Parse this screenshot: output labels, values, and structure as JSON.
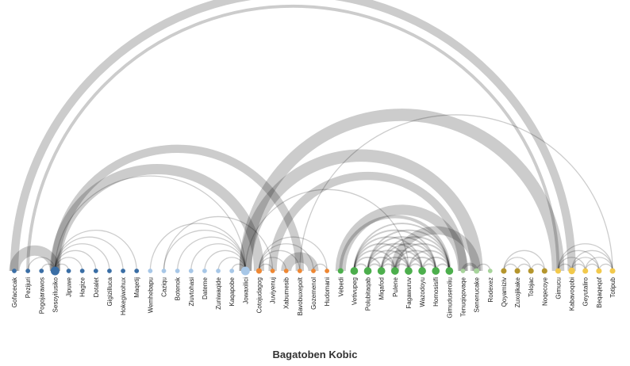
{
  "title": "Bagatoben Kobic",
  "groups": [
    {
      "id": 0,
      "color": "#3a6ea5"
    },
    {
      "id": 1,
      "color": "#a7c7e7"
    },
    {
      "id": 2,
      "color": "#ee8733"
    },
    {
      "id": 3,
      "color": "#4cae4c"
    },
    {
      "id": 4,
      "color": "#a7d49b"
    },
    {
      "id": 5,
      "color": "#b5962d"
    },
    {
      "id": 6,
      "color": "#f2c94c"
    }
  ],
  "nodes": [
    {
      "name": "Gofacecak",
      "group": 0,
      "weight": 1
    },
    {
      "name": "Pezijuri",
      "group": 0,
      "weight": 1
    },
    {
      "name": "Pogojarawos",
      "group": 0,
      "weight": 1
    },
    {
      "name": "Sesoyilusiko",
      "group": 0,
      "weight": 3
    },
    {
      "name": "Jipuwe",
      "group": 0,
      "weight": 1
    },
    {
      "name": "Hagize",
      "group": 0,
      "weight": 1
    },
    {
      "name": "Dotalet",
      "group": 0,
      "weight": 1
    },
    {
      "name": "Gigizilluca",
      "group": 0,
      "weight": 1
    },
    {
      "name": "Hokegiwohux",
      "group": 0,
      "weight": 1
    },
    {
      "name": "Maqetij",
      "group": 0,
      "weight": 1
    },
    {
      "name": "Wemhebapu",
      "group": 1,
      "weight": 1
    },
    {
      "name": "Caziqu",
      "group": 1,
      "weight": 1
    },
    {
      "name": "Botenok",
      "group": 1,
      "weight": 1
    },
    {
      "name": "Ziuvtohasi",
      "group": 1,
      "weight": 1
    },
    {
      "name": "Dateme",
      "group": 1,
      "weight": 1
    },
    {
      "name": "Zuniwaqide",
      "group": 1,
      "weight": 1
    },
    {
      "name": "Kaqapobe",
      "group": 1,
      "weight": 1
    },
    {
      "name": "Jowaxilici",
      "group": 1,
      "weight": 3
    },
    {
      "name": "Cotojudagog",
      "group": 2,
      "weight": 1.5
    },
    {
      "name": "Juviyenuj",
      "group": 2,
      "weight": 1
    },
    {
      "name": "Xabumesib",
      "group": 2,
      "weight": 1
    },
    {
      "name": "Bavobuxepolt",
      "group": 2,
      "weight": 1
    },
    {
      "name": "Gozemenol",
      "group": 2,
      "weight": 1
    },
    {
      "name": "Hudomani",
      "group": 2,
      "weight": 1
    },
    {
      "name": "Vebedi",
      "group": 3,
      "weight": 1.5
    },
    {
      "name": "Vetivupeg",
      "group": 3,
      "weight": 2.5
    },
    {
      "name": "Polubitaqab",
      "group": 3,
      "weight": 2.5
    },
    {
      "name": "Miqafod",
      "group": 3,
      "weight": 2.5
    },
    {
      "name": "Pulene",
      "group": 3,
      "weight": 2.5
    },
    {
      "name": "Fagawuruv",
      "group": 3,
      "weight": 2.5
    },
    {
      "name": "Wazodoyu",
      "group": 3,
      "weight": 2.5
    },
    {
      "name": "Homosisifi",
      "group": 3,
      "weight": 2.5
    },
    {
      "name": "Gimuduseroliu",
      "group": 3,
      "weight": 2.5
    },
    {
      "name": "Tenuqiqovaqe",
      "group": 4,
      "weight": 1
    },
    {
      "name": "Senenucake",
      "group": 4,
      "weight": 1.5
    },
    {
      "name": "Rodexez",
      "group": 4,
      "weight": 1
    },
    {
      "name": "Qoyamiziv",
      "group": 5,
      "weight": 1.5
    },
    {
      "name": "Zuxojikake",
      "group": 5,
      "weight": 1.5
    },
    {
      "name": "Tolojac",
      "group": 5,
      "weight": 1.5
    },
    {
      "name": "Noqecoye",
      "group": 5,
      "weight": 1.5
    },
    {
      "name": "Gimucu",
      "group": 6,
      "weight": 1.5
    },
    {
      "name": "Kabavoqobi",
      "group": 6,
      "weight": 2
    },
    {
      "name": "Geyutaliro",
      "group": 6,
      "weight": 1.5
    },
    {
      "name": "Beqaqeqof",
      "group": 6,
      "weight": 1.5
    },
    {
      "name": "Totipub",
      "group": 6,
      "weight": 1.5
    }
  ],
  "links": [
    [
      0,
      3,
      10
    ],
    [
      0,
      41,
      8
    ],
    [
      1,
      3,
      1
    ],
    [
      1,
      40,
      3
    ],
    [
      2,
      3,
      1
    ],
    [
      3,
      4,
      1
    ],
    [
      3,
      5,
      1
    ],
    [
      3,
      6,
      1
    ],
    [
      3,
      7,
      1
    ],
    [
      3,
      8,
      1
    ],
    [
      3,
      9,
      1
    ],
    [
      3,
      17,
      1
    ],
    [
      3,
      18,
      10
    ],
    [
      3,
      21,
      8
    ],
    [
      10,
      17,
      1
    ],
    [
      11,
      17,
      1
    ],
    [
      11,
      19,
      1
    ],
    [
      12,
      17,
      1
    ],
    [
      13,
      17,
      1
    ],
    [
      14,
      17,
      1
    ],
    [
      15,
      17,
      1
    ],
    [
      16,
      17,
      1
    ],
    [
      17,
      29,
      1
    ],
    [
      17,
      34,
      12
    ],
    [
      17,
      40,
      12
    ],
    [
      18,
      19,
      1
    ],
    [
      18,
      20,
      1
    ],
    [
      18,
      21,
      1
    ],
    [
      18,
      22,
      1
    ],
    [
      18,
      23,
      1
    ],
    [
      19,
      33,
      8
    ],
    [
      20,
      22,
      10
    ],
    [
      21,
      44,
      1
    ],
    [
      22,
      23,
      1
    ],
    [
      24,
      32,
      3
    ],
    [
      24,
      33,
      10
    ],
    [
      25,
      26,
      1.5
    ],
    [
      25,
      27,
      1.5
    ],
    [
      25,
      28,
      1.5
    ],
    [
      25,
      29,
      1.5
    ],
    [
      25,
      30,
      1.5
    ],
    [
      25,
      31,
      1.5
    ],
    [
      25,
      32,
      1.5
    ],
    [
      26,
      27,
      1.5
    ],
    [
      26,
      28,
      1.5
    ],
    [
      26,
      29,
      1.5
    ],
    [
      26,
      30,
      1.5
    ],
    [
      26,
      31,
      1.5
    ],
    [
      26,
      32,
      1.5
    ],
    [
      27,
      28,
      1.5
    ],
    [
      27,
      29,
      1.5
    ],
    [
      27,
      30,
      1.5
    ],
    [
      27,
      31,
      1.5
    ],
    [
      27,
      32,
      1.5
    ],
    [
      28,
      29,
      1.5
    ],
    [
      28,
      30,
      1.5
    ],
    [
      28,
      31,
      1.5
    ],
    [
      28,
      32,
      1.5
    ],
    [
      29,
      30,
      1.5
    ],
    [
      29,
      31,
      1.5
    ],
    [
      29,
      32,
      1.5
    ],
    [
      30,
      31,
      1.5
    ],
    [
      30,
      32,
      1.5
    ],
    [
      31,
      32,
      1.5
    ],
    [
      28,
      34,
      8
    ],
    [
      33,
      34,
      3
    ],
    [
      34,
      35,
      1
    ],
    [
      36,
      37,
      1
    ],
    [
      36,
      38,
      1
    ],
    [
      36,
      39,
      1
    ],
    [
      37,
      38,
      1
    ],
    [
      38,
      39,
      1
    ],
    [
      40,
      41,
      1
    ],
    [
      40,
      42,
      1
    ],
    [
      40,
      43,
      1
    ],
    [
      40,
      44,
      1
    ],
    [
      41,
      42,
      1
    ],
    [
      41,
      43,
      1
    ],
    [
      41,
      44,
      1
    ],
    [
      42,
      43,
      1
    ],
    [
      42,
      44,
      1
    ],
    [
      43,
      44,
      1
    ]
  ]
}
